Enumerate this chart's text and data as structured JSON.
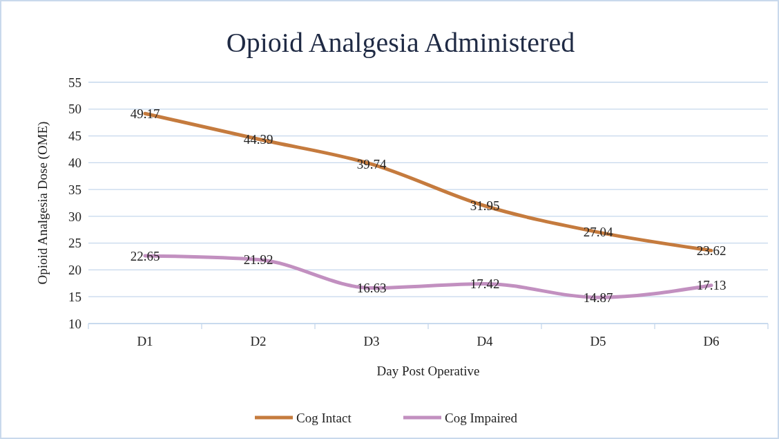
{
  "chart_data": {
    "type": "line",
    "title": "Opioid Analgesia Administered",
    "xlabel": "Day Post Operative",
    "ylabel": "Opioid Analgesia Dose (OME)",
    "categories": [
      "D1",
      "D2",
      "D3",
      "D4",
      "D5",
      "D6"
    ],
    "series": [
      {
        "name": "Cog Intact",
        "color": "#c57b3e",
        "values": [
          49.17,
          44.39,
          39.74,
          31.95,
          27.04,
          23.62
        ]
      },
      {
        "name": "Cog Impaired",
        "color": "#c290c0",
        "values": [
          22.65,
          21.92,
          16.63,
          17.42,
          14.87,
          17.13
        ]
      }
    ],
    "ylim": [
      10,
      55
    ],
    "yticks": [
      10,
      15,
      20,
      25,
      30,
      35,
      40,
      45,
      50,
      55
    ],
    "grid": "y",
    "legend": "bottom",
    "data_labels": true,
    "marker": "none",
    "line_style": "solid"
  }
}
